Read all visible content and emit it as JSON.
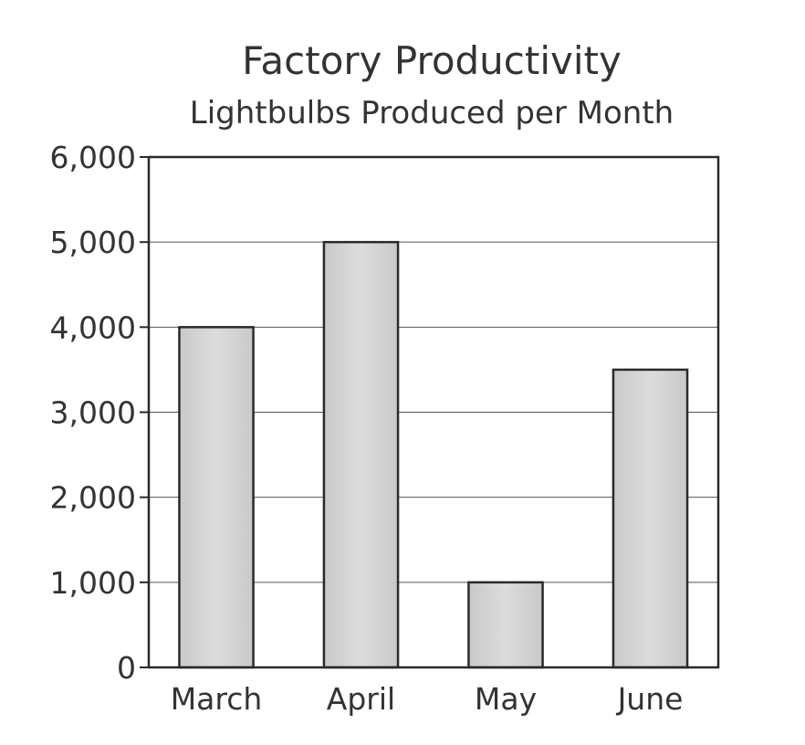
{
  "chart_data": {
    "type": "bar",
    "title": "Factory Productivity",
    "subtitle": "Lightbulbs Produced per Month",
    "categories": [
      "March",
      "April",
      "May",
      "June"
    ],
    "values": [
      4000,
      5000,
      1000,
      3500
    ],
    "ylim": [
      0,
      6000
    ],
    "yticks": [
      0,
      1000,
      2000,
      3000,
      4000,
      5000,
      6000
    ],
    "ytick_labels": [
      "0",
      "1,000",
      "2,000",
      "3,000",
      "4,000",
      "5,000",
      "6,000"
    ],
    "xlabel": "",
    "ylabel": "",
    "grid": true,
    "legend": "none",
    "colors": {
      "bar_fill": "#d4d4d4",
      "bar_stroke": "#2a2a2a",
      "frame": "#2a2a2a",
      "grid": "#555555",
      "text": "#333333"
    }
  }
}
